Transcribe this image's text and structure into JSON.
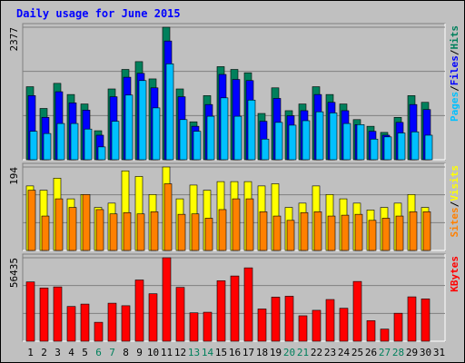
{
  "chart_data": {
    "type": "bar",
    "title": "Daily usage for June 2015",
    "x_labels": [
      "1",
      "2",
      "3",
      "4",
      "5",
      "6",
      "7",
      "8",
      "9",
      "10",
      "11",
      "12",
      "13",
      "14",
      "15",
      "16",
      "17",
      "18",
      "19",
      "20",
      "21",
      "22",
      "23",
      "24",
      "25",
      "26",
      "27",
      "28",
      "29",
      "30",
      "31"
    ],
    "weekend_days": [
      6,
      7,
      13,
      14,
      20,
      21,
      27,
      28
    ],
    "panels": [
      {
        "id": "hits-panel",
        "y_max_label": "2377",
        "y_max": 2377,
        "legend": [
          {
            "text": "Pages",
            "color": "#00c0ff"
          },
          {
            "text": "/",
            "color": "#000000"
          },
          {
            "text": "Files",
            "color": "#0000ff"
          },
          {
            "text": "/",
            "color": "#000000"
          },
          {
            "text": "Hits",
            "color": "#00805c"
          }
        ],
        "series": [
          {
            "name": "Hits",
            "color": "#00805c",
            "values": [
              1310,
              920,
              1370,
              1170,
              1000,
              520,
              1270,
              1620,
              1760,
              1450,
              2377,
              1270,
              680,
              1150,
              1670,
              1620,
              1560,
              830,
              1290,
              880,
              1000,
              1310,
              1170,
              1000,
              720,
              600,
              490,
              760,
              1150,
              1030,
              0
            ]
          },
          {
            "name": "Files",
            "color": "#0000ff",
            "values": [
              1150,
              760,
              1220,
              1020,
              890,
              440,
              1130,
              1480,
              1550,
              1290,
              2130,
              1130,
              600,
              990,
              1530,
              1440,
              1420,
              690,
              1100,
              790,
              880,
              1170,
              1030,
              880,
              630,
              510,
              440,
              670,
              990,
              900,
              0
            ]
          },
          {
            "name": "Pages",
            "color": "#00c0ff",
            "values": [
              510,
              470,
              650,
              650,
              550,
              230,
              690,
              1160,
              1420,
              930,
              1720,
              720,
              510,
              780,
              1110,
              780,
              1070,
              370,
              670,
              620,
              700,
              860,
              840,
              650,
              630,
              370,
              410,
              480,
              500,
              440,
              0
            ]
          }
        ]
      },
      {
        "id": "visits-panel",
        "y_max_label": "194",
        "y_max": 194,
        "legend": [
          {
            "text": "Sites",
            "color": "#ff8000"
          },
          {
            "text": "/",
            "color": "#000000"
          },
          {
            "text": "Visits",
            "color": "#ffff00"
          }
        ],
        "series": [
          {
            "name": "Visits",
            "color": "#ffff00",
            "values": [
              150,
              140,
              168,
              120,
              130,
              100,
              110,
              185,
              172,
              130,
              194,
              120,
              152,
              140,
              160,
              160,
              160,
              150,
              155,
              100,
              110,
              150,
              130,
              120,
              110,
              94,
              100,
              110,
              130,
              100,
              0
            ]
          },
          {
            "name": "Sites",
            "color": "#ff8000",
            "values": [
              140,
              80,
              120,
              100,
              130,
              95,
              85,
              88,
              85,
              90,
              155,
              84,
              85,
              75,
              95,
              120,
              120,
              90,
              80,
              70,
              88,
              90,
              80,
              82,
              84,
              70,
              75,
              80,
              90,
              90,
              0
            ]
          }
        ]
      },
      {
        "id": "kbytes-panel",
        "y_max_label": "56435",
        "y_max": 56435,
        "legend": [
          {
            "text": "KBytes",
            "color": "#ff0000"
          }
        ],
        "series": [
          {
            "name": "KBytes",
            "color": "#ff0000",
            "values": [
              40100,
              36000,
              36700,
              23500,
              25100,
              12800,
              25700,
              24000,
              41400,
              32100,
              56435,
              36400,
              19200,
              19600,
              40900,
              44100,
              49600,
              21800,
              29800,
              30400,
              17200,
              20900,
              28200,
              22300,
              40400,
              13900,
              8200,
              18900,
              30000,
              28600,
              0
            ]
          }
        ]
      }
    ]
  }
}
